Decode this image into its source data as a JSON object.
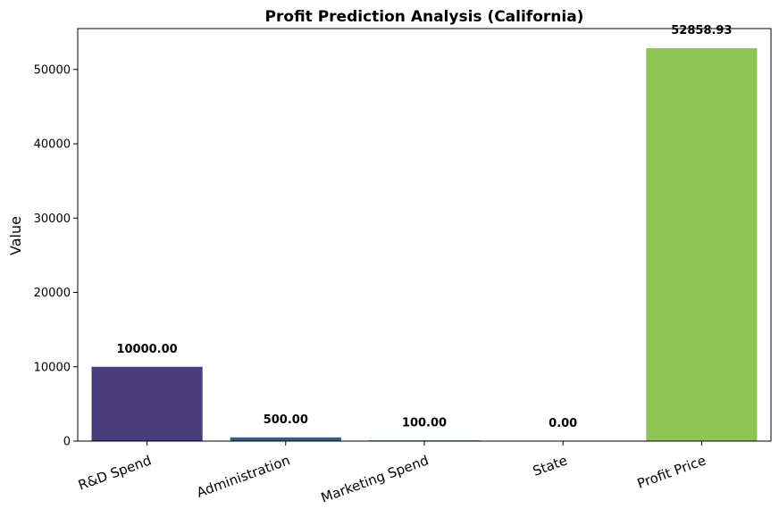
{
  "chart_data": {
    "type": "bar",
    "title": "Profit Prediction Analysis (California)",
    "xlabel": "",
    "ylabel": "Value",
    "categories": [
      "R&D Spend",
      "Administration",
      "Marketing Spend",
      "State",
      "Profit Price"
    ],
    "values": [
      10000.0,
      500.0,
      100.0,
      0.0,
      52858.93
    ],
    "value_labels": [
      "10000.00",
      "500.00",
      "100.00",
      "0.00",
      "52858.93"
    ],
    "colors": [
      "#483d7a",
      "#32608a",
      "#26828e",
      "#35b779",
      "#8fc555"
    ],
    "ylim": [
      0,
      55500
    ],
    "yticks": [
      0,
      10000,
      20000,
      30000,
      40000,
      50000
    ],
    "ytick_labels": [
      "0",
      "10000",
      "20000",
      "30000",
      "40000",
      "50000"
    ],
    "grid": false,
    "legend": "none"
  }
}
